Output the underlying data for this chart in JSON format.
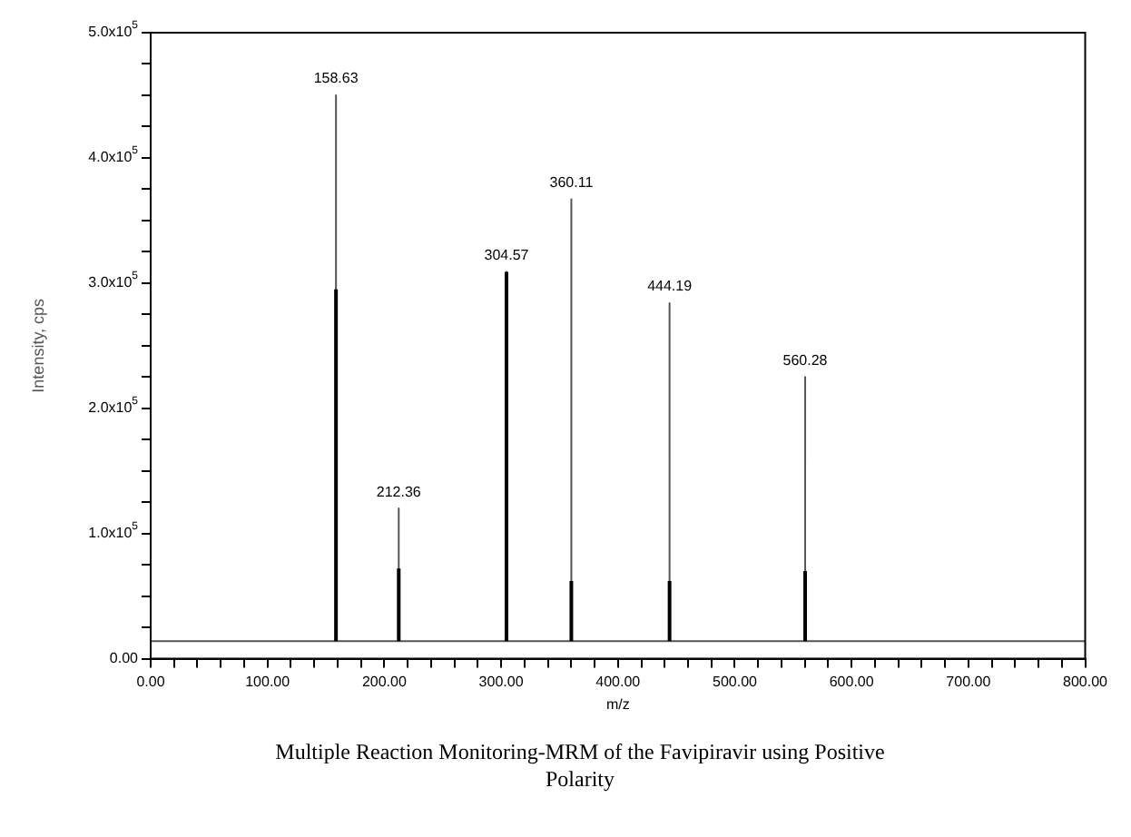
{
  "chart_data": {
    "type": "line",
    "title": "Multiple Reaction Monitoring-MRM of the Favipiravir using Positive Polarity",
    "xlabel": "m/z",
    "ylabel": "Intensity, cps",
    "xlim": [
      0,
      800
    ],
    "ylim": [
      0,
      500000
    ],
    "xticks": [
      {
        "value": 0,
        "label": "0.00"
      },
      {
        "value": 20,
        "label": null
      },
      {
        "value": 40,
        "label": null
      },
      {
        "value": 60,
        "label": null
      },
      {
        "value": 80,
        "label": null
      },
      {
        "value": 100,
        "label": "100.00"
      },
      {
        "value": 120,
        "label": null
      },
      {
        "value": 140,
        "label": null
      },
      {
        "value": 160,
        "label": null
      },
      {
        "value": 180,
        "label": null
      },
      {
        "value": 200,
        "label": "200.00"
      },
      {
        "value": 220,
        "label": null
      },
      {
        "value": 240,
        "label": null
      },
      {
        "value": 260,
        "label": null
      },
      {
        "value": 280,
        "label": null
      },
      {
        "value": 300,
        "label": "300.00"
      },
      {
        "value": 320,
        "label": null
      },
      {
        "value": 340,
        "label": null
      },
      {
        "value": 360,
        "label": null
      },
      {
        "value": 380,
        "label": null
      },
      {
        "value": 400,
        "label": "400.00"
      },
      {
        "value": 420,
        "label": null
      },
      {
        "value": 440,
        "label": null
      },
      {
        "value": 460,
        "label": null
      },
      {
        "value": 480,
        "label": null
      },
      {
        "value": 500,
        "label": "500.00"
      },
      {
        "value": 520,
        "label": null
      },
      {
        "value": 540,
        "label": null
      },
      {
        "value": 560,
        "label": null
      },
      {
        "value": 580,
        "label": null
      },
      {
        "value": 600,
        "label": "600.00"
      },
      {
        "value": 620,
        "label": null
      },
      {
        "value": 640,
        "label": null
      },
      {
        "value": 660,
        "label": null
      },
      {
        "value": 680,
        "label": null
      },
      {
        "value": 700,
        "label": "700.00"
      },
      {
        "value": 720,
        "label": null
      },
      {
        "value": 740,
        "label": null
      },
      {
        "value": 760,
        "label": null
      },
      {
        "value": 780,
        "label": null
      },
      {
        "value": 800,
        "label": "800.00"
      }
    ],
    "yticks": [
      {
        "value": 0,
        "label": "0.00"
      },
      {
        "value": 25000,
        "label": null
      },
      {
        "value": 50000,
        "label": null
      },
      {
        "value": 75000,
        "label": null
      },
      {
        "value": 100000,
        "label": "1.0x10$^{5}$"
      },
      {
        "value": 125000,
        "label": null
      },
      {
        "value": 150000,
        "label": null
      },
      {
        "value": 175000,
        "label": null
      },
      {
        "value": 200000,
        "label": "2.0x10$^{5}$"
      },
      {
        "value": 225000,
        "label": null
      },
      {
        "value": 250000,
        "label": null
      },
      {
        "value": 275000,
        "label": null
      },
      {
        "value": 300000,
        "label": "3.0x10$^{5}$"
      },
      {
        "value": 325000,
        "label": null
      },
      {
        "value": 350000,
        "label": null
      },
      {
        "value": 375000,
        "label": null
      },
      {
        "value": 400000,
        "label": "4.0x10$^{5}$"
      },
      {
        "value": 425000,
        "label": null
      },
      {
        "value": 450000,
        "label": null
      },
      {
        "value": 475000,
        "label": null
      },
      {
        "value": 500000,
        "label": "5.0x10$^{5}$"
      }
    ],
    "series": [
      {
        "color": "#555555",
        "x": [
          0,
          158.63,
          158.63,
          158.63,
          212.36,
          212.36,
          212.36,
          304.57,
          304.57,
          304.57,
          360.11,
          360.11,
          360.11,
          444.19,
          444.19,
          444.19,
          560.28,
          560.28,
          560.28,
          800
        ],
        "values": [
          14000,
          14000,
          450000,
          14000,
          14000,
          120000,
          14000,
          14000,
          309000,
          14000,
          14000,
          367000,
          14000,
          14000,
          284000,
          14000,
          14000,
          225000,
          14000,
          14000
        ]
      },
      {
        "color": "#000000",
        "x": [
          158.63,
          158.63,
          null,
          212.36,
          212.36,
          null,
          304.57,
          304.57,
          null,
          360.11,
          360.11,
          null,
          444.19,
          444.19,
          null,
          560.28,
          560.28
        ],
        "values": [
          14000,
          295000,
          null,
          14000,
          72000,
          null,
          14000,
          309000,
          null,
          14000,
          62000,
          null,
          14000,
          62000,
          null,
          14000,
          70000
        ]
      }
    ],
    "annotations": [
      {
        "text": "158.63",
        "x": 158.63,
        "y": 450000
      },
      {
        "text": "212.36",
        "x": 212.36,
        "y": 120000
      },
      {
        "text": "304.57",
        "x": 304.57,
        "y": 309000
      },
      {
        "text": "360.11",
        "x": 360.11,
        "y": 367000
      },
      {
        "text": "444.19",
        "x": 444.19,
        "y": 284000
      },
      {
        "text": "560.28",
        "x": 560.28,
        "y": 225000
      }
    ]
  }
}
